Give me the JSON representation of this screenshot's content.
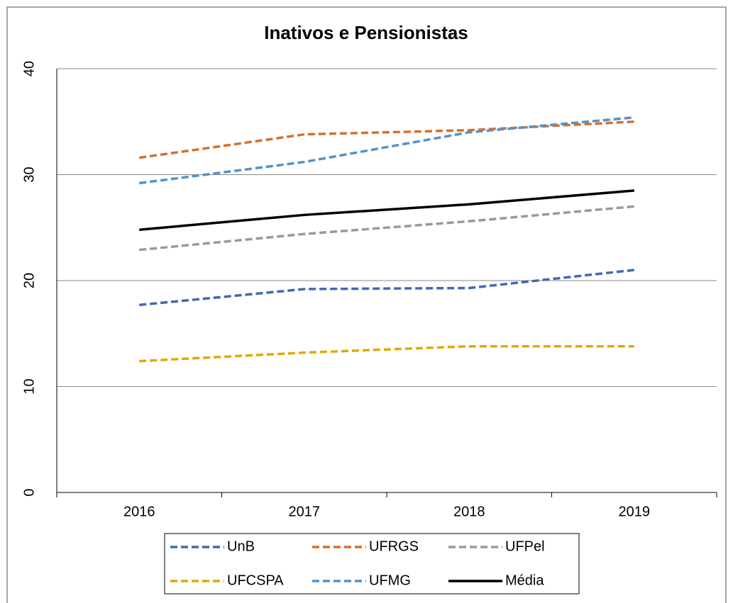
{
  "chart_data": {
    "type": "line",
    "title": "Inativos e Pensionistas",
    "categories": [
      "2016",
      "2017",
      "2018",
      "2019"
    ],
    "series": [
      {
        "name": "UnB",
        "color": "#4169b0",
        "dashed": true,
        "values": [
          17.7,
          19.2,
          19.3,
          21.0
        ]
      },
      {
        "name": "UFRGS",
        "color": "#d4702a",
        "dashed": true,
        "values": [
          31.6,
          33.8,
          34.2,
          35.0
        ]
      },
      {
        "name": "UFPel",
        "color": "#999999",
        "dashed": true,
        "values": [
          22.9,
          24.4,
          25.6,
          27.0
        ]
      },
      {
        "name": "UFCSPA",
        "color": "#e0a900",
        "dashed": true,
        "values": [
          12.4,
          13.2,
          13.8,
          13.8
        ]
      },
      {
        "name": "UFMG",
        "color": "#5591c7",
        "dashed": true,
        "values": [
          29.2,
          31.2,
          34.0,
          35.4
        ]
      },
      {
        "name": "Média",
        "color": "#000000",
        "dashed": false,
        "values": [
          24.8,
          26.2,
          27.2,
          28.5
        ]
      }
    ],
    "ylim": [
      0,
      40
    ],
    "yticks": [
      0,
      10,
      20,
      30,
      40
    ],
    "grid": true,
    "legend": "bottom"
  }
}
